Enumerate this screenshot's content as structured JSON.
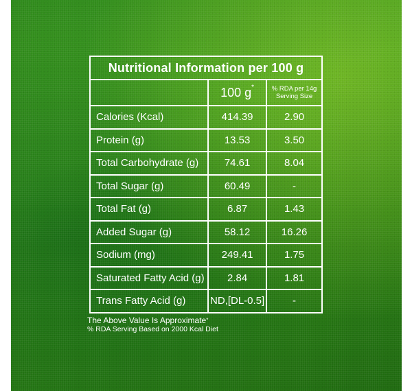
{
  "table": {
    "title": "Nutritional Information per 100 g",
    "header": {
      "label": "",
      "per100": "100 g",
      "per100_mark": "*",
      "rda_line1": "% RDA per 14g",
      "rda_line2": "Serving Size"
    },
    "rows": [
      {
        "label": "Calories (Kcal)",
        "per100": "414.39",
        "rda": "2.90"
      },
      {
        "label": "Protein (g)",
        "per100": "13.53",
        "rda": "3.50"
      },
      {
        "label": "Total Carbohydrate (g)",
        "per100": "74.61",
        "rda": "8.04"
      },
      {
        "label": "Total Sugar (g)",
        "per100": "60.49",
        "rda": "-"
      },
      {
        "label": "Total Fat (g)",
        "per100": "6.87",
        "rda": "1.43"
      },
      {
        "label": "Added Sugar (g)",
        "per100": "58.12",
        "rda": "16.26"
      },
      {
        "label": "Sodium (mg)",
        "per100": "249.41",
        "rda": "1.75"
      },
      {
        "label": "Saturated Fatty Acid (g)",
        "per100": "2.84",
        "rda": "1.81"
      },
      {
        "label": "Trans Fatty Acid (g)",
        "per100": "ND,[DL-0.5]",
        "rda": "-"
      }
    ]
  },
  "notes": {
    "approx": "The Above Value Is Approximate",
    "approx_mark": "*",
    "rda_basis": "% RDA Serving Based on 2000 Kcal Diet"
  },
  "colors": {
    "background": "#3d9a1e",
    "text": "#ffffff",
    "border": "#ffffff"
  }
}
